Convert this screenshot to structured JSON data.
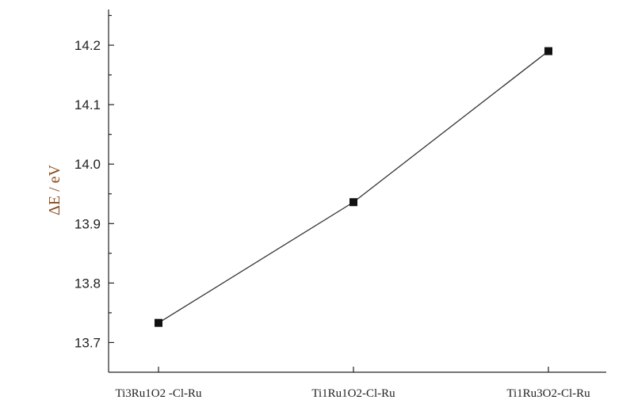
{
  "chart_data": {
    "type": "line",
    "categories": [
      "Ti3Ru1O2 -Cl-Ru",
      "Ti1Ru1O2-Cl-Ru",
      "Ti1Ru3O2-Cl-Ru"
    ],
    "series": [
      {
        "values": [
          13.733,
          13.936,
          14.19
        ]
      }
    ],
    "title": "",
    "xlabel": "",
    "ylabel": "ΔE / eV",
    "ylim": [
      13.65,
      14.26
    ],
    "yticks": [
      "13.7",
      "13.8",
      "13.9",
      "14.0",
      "14.1",
      "14.2"
    ],
    "grid": false,
    "colors": {
      "line": "#333333",
      "marker": "#111111",
      "ylabel": "#8a4b1d"
    },
    "marker": "square"
  }
}
